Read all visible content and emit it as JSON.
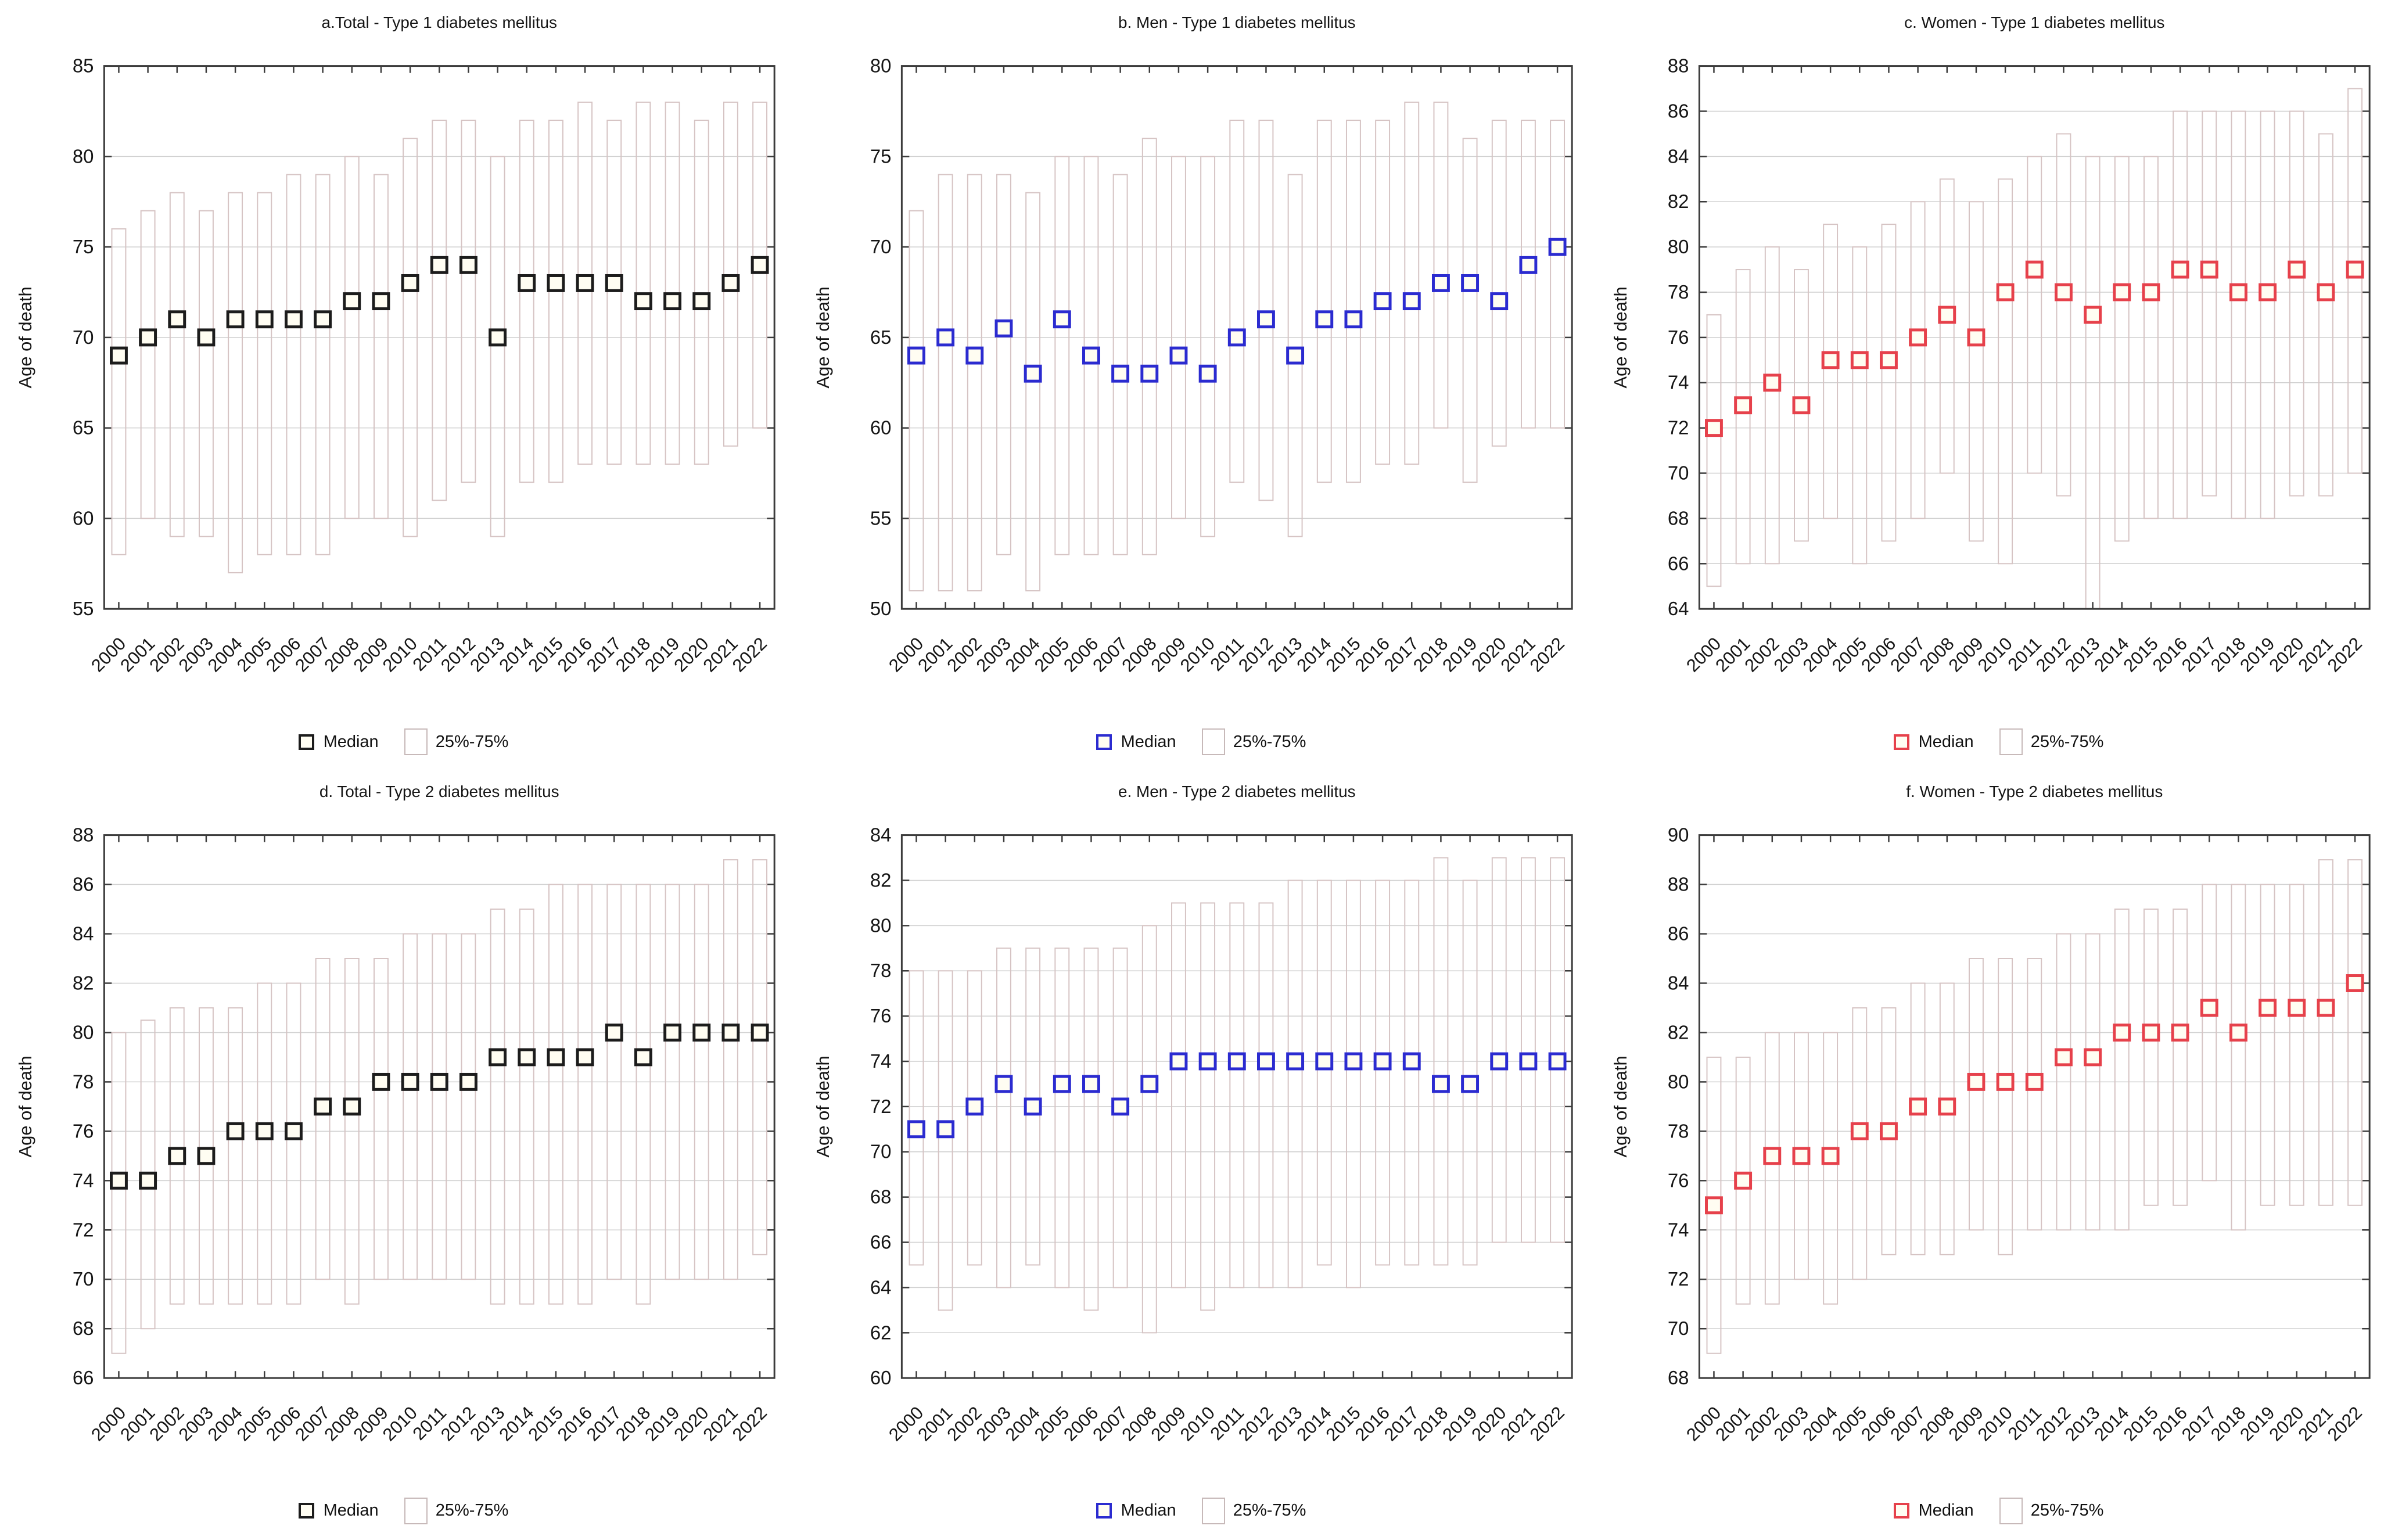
{
  "figure": {
    "ylabel": "Age of death",
    "x_years_note": "years 2000-2022 on x axis of every panel"
  },
  "legend": {
    "median_label": "Median",
    "iqr_label": "25%-75%"
  },
  "colors": {
    "median_total": "#1c1c1c",
    "median_men": "#2b2bd0",
    "median_women": "#e6414b",
    "bar_outline": "#d6c4c4",
    "gridline": "#cfcfcf",
    "frame": "#3c3c3c",
    "marker_fill": "#fffdf2"
  },
  "chart_data": [
    {
      "id": "a",
      "type": "bar",
      "subtype": "median-with-25-75-range",
      "title": "a.Total - Type 1 diabetes mellitus",
      "xlabel": "",
      "ylabel": "Age of death",
      "ylim": [
        55,
        85
      ],
      "ytick_step": 5,
      "grid": true,
      "legend_position": "bottom",
      "median_color": "#1c1c1c",
      "bar_outline_color": "#d6c4c4",
      "categories": [
        2000,
        2001,
        2002,
        2003,
        2004,
        2005,
        2006,
        2007,
        2008,
        2009,
        2010,
        2011,
        2012,
        2013,
        2014,
        2015,
        2016,
        2017,
        2018,
        2019,
        2020,
        2021,
        2022
      ],
      "series": [
        {
          "name": "Median",
          "values": [
            69,
            70,
            71,
            70,
            71,
            71,
            71,
            71,
            72,
            72,
            73,
            74,
            74,
            70,
            73,
            73,
            73,
            73,
            72,
            72,
            72,
            73,
            74
          ]
        },
        {
          "name": "25th percentile",
          "values": [
            58,
            60,
            59,
            59,
            57,
            58,
            58,
            58,
            60,
            60,
            59,
            61,
            62,
            59,
            62,
            62,
            63,
            63,
            63,
            63,
            63,
            64,
            65
          ]
        },
        {
          "name": "75th percentile",
          "values": [
            76,
            77,
            78,
            77,
            78,
            78,
            79,
            79,
            80,
            79,
            81,
            82,
            82,
            80,
            82,
            82,
            83,
            82,
            83,
            83,
            82,
            83,
            83
          ]
        }
      ]
    },
    {
      "id": "b",
      "type": "bar",
      "subtype": "median-with-25-75-range",
      "title": "b. Men - Type 1 diabetes mellitus",
      "xlabel": "",
      "ylabel": "Age of death",
      "ylim": [
        50,
        80
      ],
      "ytick_step": 5,
      "grid": true,
      "legend_position": "bottom",
      "median_color": "#2b2bd0",
      "bar_outline_color": "#d6c4c4",
      "categories": [
        2000,
        2001,
        2002,
        2003,
        2004,
        2005,
        2006,
        2007,
        2008,
        2009,
        2010,
        2011,
        2012,
        2013,
        2014,
        2015,
        2016,
        2017,
        2018,
        2019,
        2020,
        2021,
        2022
      ],
      "series": [
        {
          "name": "Median",
          "values": [
            64,
            65,
            64,
            65.5,
            63,
            66,
            64,
            63,
            63,
            64,
            63,
            65,
            66,
            64,
            66,
            66,
            67,
            67,
            68,
            68,
            67,
            69,
            70
          ]
        },
        {
          "name": "25th percentile",
          "values": [
            51,
            51,
            51,
            53,
            51,
            53,
            53,
            53,
            53,
            55,
            54,
            57,
            56,
            54,
            57,
            57,
            58,
            58,
            60,
            57,
            59,
            60,
            60
          ]
        },
        {
          "name": "75th percentile",
          "values": [
            72,
            74,
            74,
            74,
            73,
            75,
            75,
            74,
            76,
            75,
            75,
            77,
            77,
            74,
            77,
            77,
            77,
            78,
            78,
            76,
            77,
            77,
            77
          ]
        }
      ]
    },
    {
      "id": "c",
      "type": "bar",
      "subtype": "median-with-25-75-range",
      "title": "c. Women - Type 1 diabetes mellitus",
      "xlabel": "",
      "ylabel": "Age of death",
      "ylim": [
        64,
        88
      ],
      "ytick_step": 2,
      "grid": true,
      "legend_position": "bottom",
      "median_color": "#e6414b",
      "bar_outline_color": "#d6c4c4",
      "categories": [
        2000,
        2001,
        2002,
        2003,
        2004,
        2005,
        2006,
        2007,
        2008,
        2009,
        2010,
        2011,
        2012,
        2013,
        2014,
        2015,
        2016,
        2017,
        2018,
        2019,
        2020,
        2021,
        2022
      ],
      "series": [
        {
          "name": "Median",
          "values": [
            72,
            73,
            74,
            73,
            75,
            75,
            75,
            76,
            77,
            76,
            78,
            79,
            78,
            77,
            78,
            78,
            79,
            79,
            78,
            78,
            79,
            78,
            79
          ]
        },
        {
          "name": "25th percentile",
          "values": [
            65,
            66,
            66,
            67,
            68,
            66,
            67,
            68,
            70,
            67,
            66,
            70,
            69,
            64,
            67,
            68,
            68,
            69,
            68,
            68,
            69,
            69,
            70
          ]
        },
        {
          "name": "75th percentile",
          "values": [
            77,
            79,
            80,
            79,
            81,
            80,
            81,
            82,
            83,
            82,
            83,
            84,
            85,
            84,
            84,
            84,
            86,
            86,
            86,
            86,
            86,
            85,
            87
          ]
        }
      ]
    },
    {
      "id": "d",
      "type": "bar",
      "subtype": "median-with-25-75-range",
      "title": "d. Total - Type 2 diabetes mellitus",
      "xlabel": "",
      "ylabel": "Age of death",
      "ylim": [
        66,
        88
      ],
      "ytick_step": 2,
      "grid": true,
      "legend_position": "bottom",
      "median_color": "#1c1c1c",
      "bar_outline_color": "#d6c4c4",
      "categories": [
        2000,
        2001,
        2002,
        2003,
        2004,
        2005,
        2006,
        2007,
        2008,
        2009,
        2010,
        2011,
        2012,
        2013,
        2014,
        2015,
        2016,
        2017,
        2018,
        2019,
        2020,
        2021,
        2022
      ],
      "series": [
        {
          "name": "Median",
          "values": [
            74,
            74,
            75,
            75,
            76,
            76,
            76,
            77,
            77,
            78,
            78,
            78,
            78,
            79,
            79,
            79,
            79,
            80,
            79,
            80,
            80,
            80,
            80
          ]
        },
        {
          "name": "25th percentile",
          "values": [
            67,
            68,
            69,
            69,
            69,
            69,
            69,
            70,
            69,
            70,
            70,
            70,
            70,
            69,
            69,
            69,
            69,
            70,
            69,
            70,
            70,
            70,
            71
          ]
        },
        {
          "name": "75th percentile",
          "values": [
            80,
            80.5,
            81,
            81,
            81,
            82,
            82,
            83,
            83,
            83,
            84,
            84,
            84,
            85,
            85,
            86,
            86,
            86,
            86,
            86,
            86,
            87,
            87
          ]
        }
      ]
    },
    {
      "id": "e",
      "type": "bar",
      "subtype": "median-with-25-75-range",
      "title": "e. Men - Type 2 diabetes mellitus",
      "xlabel": "",
      "ylabel": "Age of death",
      "ylim": [
        60,
        84
      ],
      "ytick_step": 2,
      "grid": true,
      "legend_position": "bottom",
      "median_color": "#2b2bd0",
      "bar_outline_color": "#d6c4c4",
      "categories": [
        2000,
        2001,
        2002,
        2003,
        2004,
        2005,
        2006,
        2007,
        2008,
        2009,
        2010,
        2011,
        2012,
        2013,
        2014,
        2015,
        2016,
        2017,
        2018,
        2019,
        2020,
        2021,
        2022
      ],
      "series": [
        {
          "name": "Median",
          "values": [
            71,
            71,
            72,
            73,
            72,
            73,
            73,
            72,
            73,
            74,
            74,
            74,
            74,
            74,
            74,
            74,
            74,
            74,
            73,
            73,
            74,
            74,
            74
          ]
        },
        {
          "name": "25th percentile",
          "values": [
            65,
            63,
            65,
            64,
            65,
            64,
            63,
            64,
            62,
            64,
            63,
            64,
            64,
            64,
            65,
            64,
            65,
            65,
            65,
            65,
            66,
            66,
            66
          ]
        },
        {
          "name": "75th percentile",
          "values": [
            78,
            78,
            78,
            79,
            79,
            79,
            79,
            79,
            80,
            81,
            81,
            81,
            81,
            82,
            82,
            82,
            82,
            82,
            83,
            82,
            83,
            83,
            83
          ]
        }
      ]
    },
    {
      "id": "f",
      "type": "bar",
      "subtype": "median-with-25-75-range",
      "title": "f. Women - Type 2 diabetes mellitus",
      "xlabel": "",
      "ylabel": "Age of death",
      "ylim": [
        68,
        90
      ],
      "ytick_step": 2,
      "grid": true,
      "legend_position": "bottom",
      "median_color": "#e6414b",
      "bar_outline_color": "#d6c4c4",
      "categories": [
        2000,
        2001,
        2002,
        2003,
        2004,
        2005,
        2006,
        2007,
        2008,
        2009,
        2010,
        2011,
        2012,
        2013,
        2014,
        2015,
        2016,
        2017,
        2018,
        2019,
        2020,
        2021,
        2022
      ],
      "series": [
        {
          "name": "Median",
          "values": [
            75,
            76,
            77,
            77,
            77,
            78,
            78,
            79,
            79,
            80,
            80,
            80,
            81,
            81,
            82,
            82,
            82,
            83,
            82,
            83,
            83,
            83,
            84
          ]
        },
        {
          "name": "25th percentile",
          "values": [
            69,
            71,
            71,
            72,
            71,
            72,
            73,
            73,
            73,
            74,
            73,
            74,
            74,
            74,
            74,
            75,
            75,
            76,
            74,
            75,
            75,
            75,
            75
          ]
        },
        {
          "name": "75th percentile",
          "values": [
            81,
            81,
            82,
            82,
            82,
            83,
            83,
            84,
            84,
            85,
            85,
            85,
            86,
            86,
            87,
            87,
            87,
            88,
            88,
            88,
            88,
            89,
            89
          ]
        }
      ]
    }
  ]
}
